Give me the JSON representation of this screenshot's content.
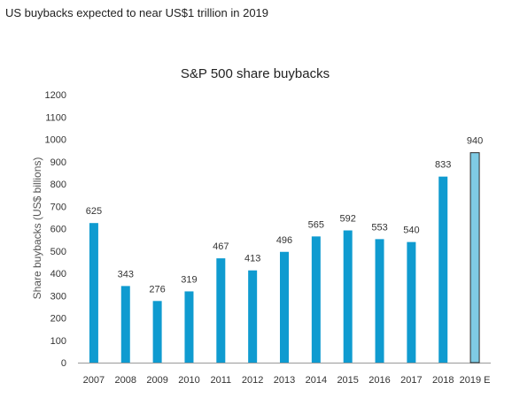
{
  "header": {
    "title": "US buybacks expected to near US$1 trillion in 2019"
  },
  "chart_data": {
    "type": "bar",
    "title": "S&P 500 share buybacks",
    "xlabel": "",
    "ylabel": "Share buybacks (US$ billions)",
    "categories": [
      "2007",
      "2008",
      "2009",
      "2010",
      "2011",
      "2012",
      "2013",
      "2014",
      "2015",
      "2016",
      "2017",
      "2018",
      "2019 E"
    ],
    "values": [
      625,
      343,
      276,
      319,
      467,
      413,
      496,
      565,
      592,
      553,
      540,
      833,
      940
    ],
    "data_labels": [
      "625",
      "343",
      "276",
      "319",
      "467",
      "413",
      "496",
      "565",
      "592",
      "553",
      "540",
      "833",
      "940"
    ],
    "yticks": [
      "0",
      "100",
      "200",
      "300",
      "400",
      "500",
      "600",
      "700",
      "800",
      "900",
      "1000",
      "1100",
      "1200"
    ],
    "ylim": [
      0,
      1200
    ],
    "grid": false,
    "legend": "none",
    "colors": {
      "bar": "#0f9bd0",
      "estimate_bar": "#7fcbe4",
      "estimate_bar_outline": "#2a2a2a",
      "axis": "#999999"
    }
  }
}
